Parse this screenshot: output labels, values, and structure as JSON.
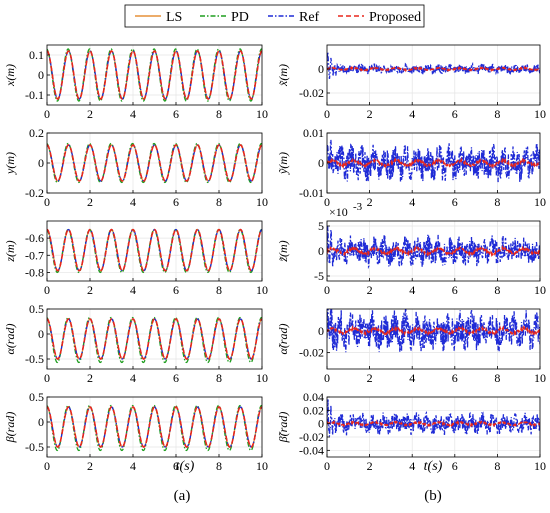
{
  "legend": {
    "items": [
      {
        "label": "LS",
        "color": "#E69138",
        "dash": "solid"
      },
      {
        "label": "PD",
        "color": "#1F9E1F",
        "dash": "dashdot"
      },
      {
        "label": "Ref",
        "color": "#1F2BD6",
        "dash": "dashdot"
      },
      {
        "label": "Proposed",
        "color": "#E8271C",
        "dash": "dashed"
      }
    ]
  },
  "panel_labels": {
    "left": "(a)",
    "right": "(b)"
  },
  "x_axis_label": "t(s)",
  "chart_data": [
    {
      "id": "x",
      "type": "line",
      "ylabel": "x(m)",
      "xlim": [
        0,
        10
      ],
      "ylim": [
        -0.15,
        0.15
      ],
      "xticks": [
        0,
        2,
        4,
        6,
        8,
        10
      ],
      "yticks": [
        -0.1,
        0,
        0.1
      ],
      "ytick_labels": [
        "-0.1",
        "0",
        "0.1"
      ],
      "grid": true,
      "signal": {
        "frequency_hz": 1.0,
        "series": [
          {
            "name": "LS",
            "amplitude": 0.12,
            "offset": 0
          },
          {
            "name": "PD",
            "amplitude": 0.13,
            "offset": 0
          },
          {
            "name": "Ref",
            "amplitude": 0.12,
            "offset": 0
          },
          {
            "name": "Proposed",
            "amplitude": 0.12,
            "offset": 0
          }
        ]
      }
    },
    {
      "id": "y",
      "type": "line",
      "ylabel": "y(m)",
      "xlim": [
        0,
        10
      ],
      "ylim": [
        -0.2,
        0.2
      ],
      "xticks": [
        0,
        2,
        4,
        6,
        8,
        10
      ],
      "yticks": [
        -0.2,
        0,
        0.2
      ],
      "ytick_labels": [
        "-0.2",
        "0",
        "0.2"
      ],
      "grid": true,
      "signal": {
        "frequency_hz": 1.0,
        "series": [
          {
            "name": "LS",
            "amplitude": 0.12,
            "offset": 0
          },
          {
            "name": "PD",
            "amplitude": 0.13,
            "offset": 0
          },
          {
            "name": "Ref",
            "amplitude": 0.12,
            "offset": 0
          },
          {
            "name": "Proposed",
            "amplitude": 0.12,
            "offset": 0
          }
        ]
      }
    },
    {
      "id": "z",
      "type": "line",
      "ylabel": "z(m)",
      "xlim": [
        0,
        10
      ],
      "ylim": [
        -0.85,
        -0.5
      ],
      "xticks": [
        0,
        2,
        4,
        6,
        8,
        10
      ],
      "yticks": [
        -0.8,
        -0.7,
        -0.6
      ],
      "ytick_labels": [
        "-0.8",
        "-0.7",
        "-0.6"
      ],
      "grid": true,
      "signal": {
        "frequency_hz": 1.0,
        "series": [
          {
            "name": "LS",
            "amplitude": 0.12,
            "offset": -0.67
          },
          {
            "name": "PD",
            "amplitude": 0.125,
            "offset": -0.675
          },
          {
            "name": "Ref",
            "amplitude": 0.12,
            "offset": -0.67
          },
          {
            "name": "Proposed",
            "amplitude": 0.12,
            "offset": -0.67
          }
        ]
      }
    },
    {
      "id": "alpha",
      "type": "line",
      "ylabel": "α(rad)",
      "xlim": [
        0,
        10
      ],
      "ylim": [
        -0.7,
        0.5
      ],
      "xticks": [
        0,
        2,
        4,
        6,
        8,
        10
      ],
      "yticks": [
        -0.5,
        0,
        0.5
      ],
      "ytick_labels": [
        "-0.5",
        "0",
        "0.5"
      ],
      "grid": true,
      "signal": {
        "frequency_hz": 1.0,
        "series": [
          {
            "name": "LS",
            "amplitude": 0.4,
            "offset": -0.1
          },
          {
            "name": "PD",
            "amplitude": 0.45,
            "offset": -0.12
          },
          {
            "name": "Ref",
            "amplitude": 0.4,
            "offset": -0.1
          },
          {
            "name": "Proposed",
            "amplitude": 0.4,
            "offset": -0.1
          }
        ]
      }
    },
    {
      "id": "beta",
      "type": "line",
      "ylabel": "β(rad)",
      "xlim": [
        0,
        10
      ],
      "ylim": [
        -0.7,
        0.5
      ],
      "xticks": [
        0,
        2,
        4,
        6,
        8,
        10
      ],
      "yticks": [
        -0.5,
        0,
        0.5
      ],
      "ytick_labels": [
        "-0.5",
        "0",
        "0.5"
      ],
      "grid": true,
      "signal": {
        "frequency_hz": 1.0,
        "series": [
          {
            "name": "LS",
            "amplitude": 0.4,
            "offset": -0.1
          },
          {
            "name": "PD",
            "amplitude": 0.45,
            "offset": -0.12
          },
          {
            "name": "Ref",
            "amplitude": 0.4,
            "offset": -0.1
          },
          {
            "name": "Proposed",
            "amplitude": 0.4,
            "offset": -0.1
          }
        ]
      }
    },
    {
      "id": "ex",
      "type": "line",
      "ylabel": "x̃(m)",
      "xlim": [
        0,
        10
      ],
      "ylim": [
        -0.03,
        0.02
      ],
      "xticks": [
        0,
        2,
        4,
        6,
        8,
        10
      ],
      "yticks": [
        -0.02,
        0
      ],
      "ytick_labels": [
        "-0.02",
        "0"
      ],
      "grid": true,
      "noise": {
        "ref_std": 0.002,
        "ref_transient_peak": 0.02,
        "proposed_std": 0.0008
      }
    },
    {
      "id": "ey",
      "type": "line",
      "ylabel": "ỹ(m)",
      "xlim": [
        0,
        10
      ],
      "ylim": [
        -0.01,
        0.01
      ],
      "xticks": [
        0,
        2,
        4,
        6,
        8,
        10
      ],
      "yticks": [
        -0.01,
        0,
        0.01
      ],
      "ytick_labels": [
        "-0.01",
        "0",
        "0.01"
      ],
      "grid": true,
      "noise": {
        "ref_std": 0.003,
        "ref_transient_peak": 0.008,
        "proposed_std": 0.0008
      }
    },
    {
      "id": "ez",
      "type": "line",
      "ylabel": "z̃(m)",
      "xlim": [
        0,
        10
      ],
      "ylim": [
        -0.006,
        0.006
      ],
      "xticks": [
        0,
        2,
        4,
        6,
        8,
        10
      ],
      "yticks": [
        -0.005,
        0,
        0.005
      ],
      "ytick_labels": [
        "-5",
        "0",
        "5"
      ],
      "exponent_label": "×10",
      "exponent": "-3",
      "grid": true,
      "noise": {
        "ref_std": 0.0015,
        "ref_transient_peak": 0.005,
        "proposed_std": 0.0005
      }
    },
    {
      "id": "ealpha",
      "type": "line",
      "ylabel": "α̃(rad)",
      "xlim": [
        0,
        10
      ],
      "ylim": [
        -0.035,
        0.02
      ],
      "xticks": [
        0,
        2,
        4,
        6,
        8,
        10
      ],
      "yticks": [
        -0.02,
        0
      ],
      "ytick_labels": [
        "-0.02",
        "0"
      ],
      "grid": true,
      "noise": {
        "ref_std": 0.009,
        "ref_transient_peak": 0.02,
        "proposed_std": 0.002
      }
    },
    {
      "id": "ebeta",
      "type": "line",
      "ylabel": "β̃(rad)",
      "xlim": [
        0,
        10
      ],
      "ylim": [
        -0.05,
        0.04
      ],
      "xticks": [
        0,
        2,
        4,
        6,
        8,
        10
      ],
      "yticks": [
        -0.04,
        -0.02,
        0,
        0.02,
        0.04
      ],
      "ytick_labels": [
        "-0.04",
        "-0.02",
        "0",
        "0.02",
        "0.04"
      ],
      "grid": true,
      "noise": {
        "ref_std": 0.008,
        "ref_transient_peak": 0.04,
        "proposed_std": 0.002
      }
    }
  ]
}
